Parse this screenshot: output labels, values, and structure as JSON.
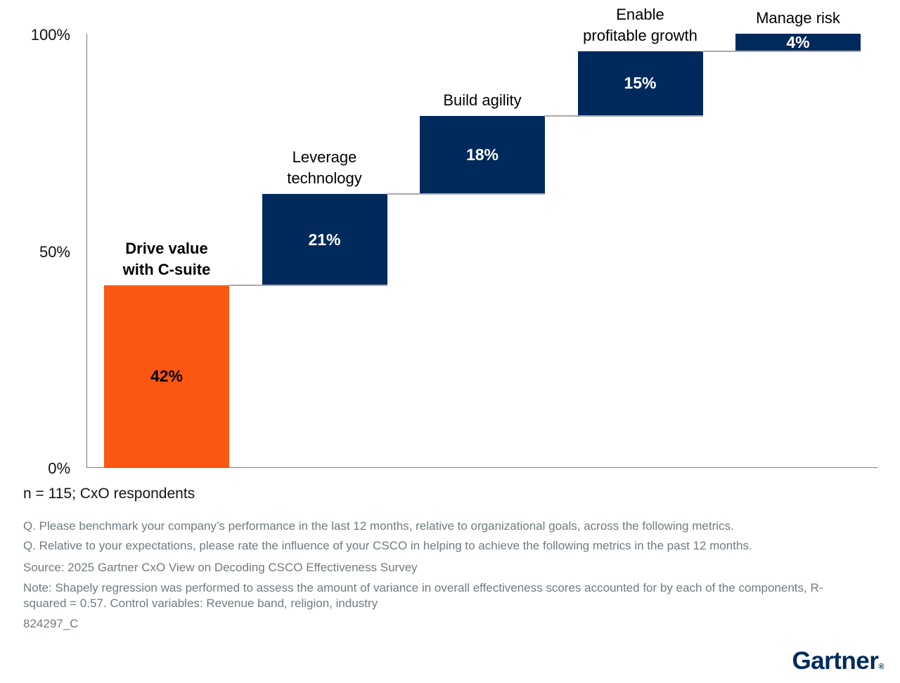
{
  "chart_data": {
    "type": "waterfall",
    "title": "",
    "ylim": [
      0,
      100
    ],
    "grid": false,
    "legend": "none",
    "yticks": [
      {
        "label": "100%",
        "value": 100
      },
      {
        "label": "50%",
        "value": 50
      },
      {
        "label": "0%",
        "value": 0
      }
    ],
    "categories": [
      "Drive value with C-suite",
      "Leverage technology",
      "Build agility",
      "Enable profitable growth",
      "Manage risk"
    ],
    "values": [
      42,
      21,
      18,
      15,
      4
    ],
    "cumulative_end": [
      42,
      63,
      81,
      96,
      100
    ],
    "bars": [
      {
        "category": "Drive value with C-suite",
        "label_lines": [
          "Drive value",
          "with C-suite"
        ],
        "label_bold": true,
        "value": 42,
        "value_label": "42%",
        "color": "#FC5712",
        "value_color": "#000000"
      },
      {
        "category": "Leverage technology",
        "label_lines": [
          "Leverage",
          "technology"
        ],
        "label_bold": false,
        "value": 21,
        "value_label": "21%",
        "color": "#002A5C",
        "value_color": "#FFFFFF"
      },
      {
        "category": "Build agility",
        "label_lines": [
          "Build agility"
        ],
        "label_bold": false,
        "value": 18,
        "value_label": "18%",
        "color": "#002A5C",
        "value_color": "#FFFFFF"
      },
      {
        "category": "Enable profitable growth",
        "label_lines": [
          "Enable",
          "profitable growth"
        ],
        "label_bold": false,
        "value": 15,
        "value_label": "15%",
        "color": "#002A5C",
        "value_color": "#FFFFFF"
      },
      {
        "category": "Manage risk",
        "label_lines": [
          "Manage risk"
        ],
        "label_bold": false,
        "value": 4,
        "value_label": "4%",
        "color": "#002A5C",
        "value_color": "#FFFFFF"
      }
    ]
  },
  "footer": {
    "sample": "n = 115; CxO respondents",
    "q1": "Q. Please benchmark your company’s performance in the last 12 months, relative to organizational goals, across the following metrics.",
    "q2": "Q. Relative to your expectations, please rate the influence of your CSCO in helping to achieve the following metrics in the past 12 months.",
    "source": "Source: 2025 Gartner CxO View on Decoding CSCO Effectiveness Survey",
    "note": "Note: Shapely regression was performed to assess the amount of variance in overall effectiveness scores accounted for by each of the components, R-squared = 0.57. Control variables: Revenue band, religion, industry",
    "doc_id": "824297_C"
  },
  "logo": {
    "text": "Gartner",
    "reg": "®"
  },
  "colors": {
    "accent_orange": "#FC5712",
    "brand_navy": "#002A5C",
    "axis_gray": "#7F7F7F",
    "connector_gray": "#A9A9A9",
    "footnote_gray": "#6F7B80"
  }
}
